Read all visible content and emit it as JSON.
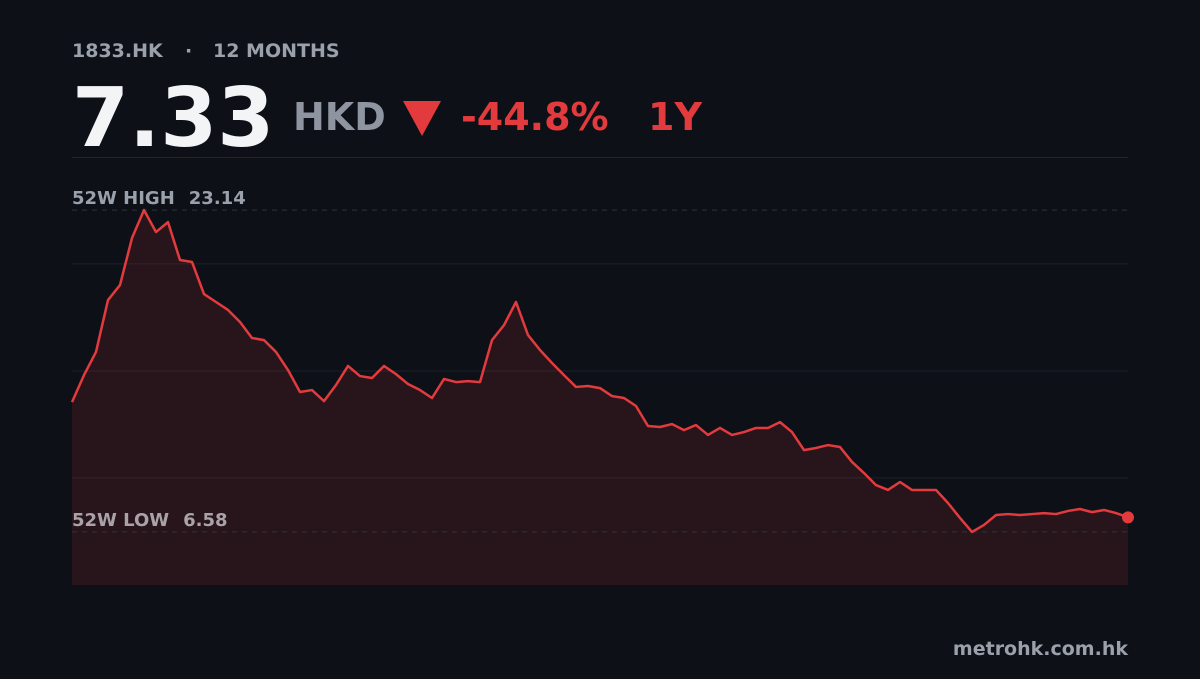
{
  "header": {
    "ticker": "1833.HK",
    "period": "12 MONTHS"
  },
  "quote": {
    "price": 7.33,
    "currency": "HKD",
    "change": {
      "value": -44.8,
      "label": "-44.8%"
    },
    "range": "1Y"
  },
  "chart_data": {
    "type": "line",
    "color": "#e33b3d",
    "values": [
      13.26,
      14.65,
      15.84,
      18.51,
      19.28,
      21.7,
      23.14,
      22.01,
      22.52,
      20.57,
      20.47,
      18.82,
      18.41,
      18.0,
      17.38,
      16.56,
      16.45,
      15.84,
      14.91,
      13.78,
      13.88,
      13.31,
      14.14,
      15.12,
      14.6,
      14.5,
      15.12,
      14.7,
      14.19,
      13.88,
      13.47,
      14.45,
      14.29,
      14.34,
      14.29,
      16.45,
      17.22,
      18.41,
      16.71,
      15.94,
      15.27,
      14.65,
      14.04,
      14.09,
      13.98,
      13.57,
      13.47,
      13.06,
      12.03,
      11.98,
      12.13,
      11.82,
      12.08,
      11.57,
      11.93,
      11.57,
      11.72,
      11.93,
      11.93,
      12.23,
      11.72,
      10.79,
      10.9,
      11.05,
      10.95,
      10.18,
      9.61,
      8.99,
      8.74,
      9.15,
      8.74,
      8.74,
      8.74,
      8.07,
      7.3,
      6.58,
      6.94,
      7.45,
      7.5,
      7.45,
      7.5,
      7.55,
      7.5,
      7.66,
      7.76,
      7.6,
      7.71,
      7.55,
      7.33
    ],
    "ylim": [
      3.85,
      25.87
    ],
    "yticks": [
      9.36,
      14.86,
      20.37
    ],
    "grid": true,
    "annotations": [
      {
        "label": "52W HIGH",
        "value": 23.14
      },
      {
        "label": "52W LOW",
        "value": 6.58
      }
    ]
  },
  "footer": "metrohk.com.hk"
}
